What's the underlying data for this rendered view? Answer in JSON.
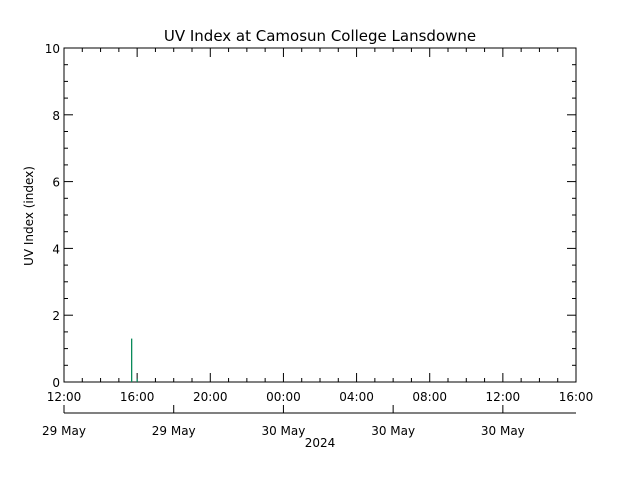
{
  "chart_data": {
    "type": "bar",
    "title": "UV Index at Camosun College Lansdowne",
    "ylabel": "UV Index (index)",
    "ylim": [
      0,
      10
    ],
    "y_ticks": [
      "0",
      "2",
      "4",
      "6",
      "8",
      "10"
    ],
    "x_tick_labels": [
      "12:00",
      "16:00",
      "20:00",
      "00:00",
      "04:00",
      "08:00",
      "12:00",
      "16:00"
    ],
    "x_range_hours": [
      0,
      28
    ],
    "date_labels": [
      "29 May",
      "29 May",
      "30 May",
      "30 May",
      "30 May"
    ],
    "year_label": "2024",
    "bar_color": "#0a8a5a",
    "series": [
      {
        "values": [
          {
            "hour_offset": 3.7,
            "uv": 1.3
          },
          {
            "hour_offset": 4.0,
            "uv": 0.1
          }
        ]
      }
    ]
  }
}
